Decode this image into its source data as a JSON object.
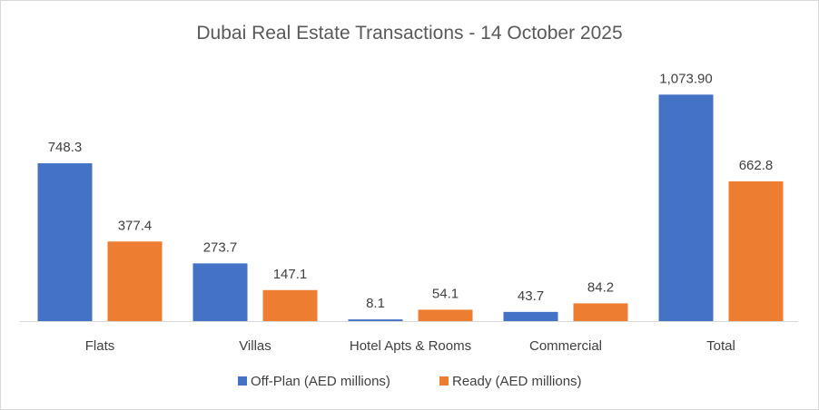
{
  "chart_data": {
    "type": "bar",
    "title": "Dubai Real Estate Transactions - 14 October 2025",
    "categories": [
      "Flats",
      "Villas",
      "Hotel Apts & Rooms",
      "Commercial",
      "Total"
    ],
    "series": [
      {
        "name": "Off-Plan (AED millions)",
        "color": "#4472c4",
        "values": [
          748.3,
          273.7,
          8.1,
          43.7,
          1073.9
        ],
        "labels": [
          "748.3",
          "273.7",
          "8.1",
          "43.7",
          "1,073.90"
        ]
      },
      {
        "name": "Ready (AED millions)",
        "color": "#ed7d31",
        "values": [
          377.4,
          147.1,
          54.1,
          84.2,
          662.8
        ],
        "labels": [
          "377.4",
          "147.1",
          "54.1",
          "84.2",
          "662.8"
        ]
      }
    ],
    "xlabel": "",
    "ylabel": "",
    "ylim": [
      0,
      1100
    ],
    "grid": false,
    "legend": "bottom"
  }
}
